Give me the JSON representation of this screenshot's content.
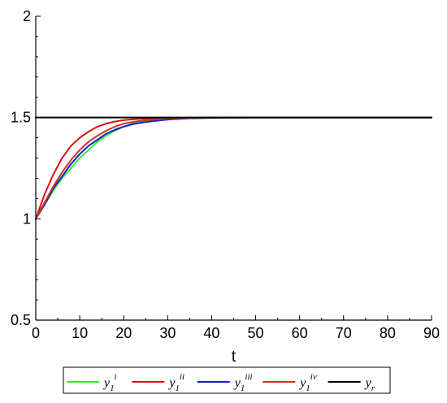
{
  "chart_data": {
    "type": "line",
    "title": "",
    "xlabel": "t",
    "ylabel": "",
    "xlim": [
      0,
      90
    ],
    "ylim": [
      0.5,
      2
    ],
    "grid": false,
    "legend_position": "bottom",
    "x_ticks": [
      "0",
      "10",
      "20",
      "30",
      "40",
      "50",
      "60",
      "70",
      "80",
      "90"
    ],
    "x_tick_values": [
      0,
      10,
      20,
      30,
      40,
      50,
      60,
      70,
      80,
      90
    ],
    "y_ticks": [
      "0.5",
      "1",
      "1.5",
      "2"
    ],
    "y_tick_values": [
      0.5,
      1,
      1.5,
      2
    ],
    "series": [
      {
        "name": "y1i",
        "legend_base": "y",
        "legend_sub": "1",
        "legend_sup": "i",
        "color": "#33ee33",
        "x": [
          0,
          2,
          4,
          6,
          8,
          10,
          12,
          14,
          16,
          18,
          20,
          22,
          25,
          30,
          35,
          40,
          50,
          60,
          70,
          80,
          90
        ],
        "y": [
          1.0,
          1.07,
          1.14,
          1.2,
          1.25,
          1.3,
          1.34,
          1.38,
          1.41,
          1.435,
          1.455,
          1.47,
          1.48,
          1.493,
          1.497,
          1.499,
          1.5,
          1.5,
          1.5,
          1.5,
          1.5
        ]
      },
      {
        "name": "y1ii",
        "legend_base": "y",
        "legend_sub": "1",
        "legend_sup": "ii",
        "color": "#dd1111",
        "x": [
          0,
          2,
          4,
          6,
          8,
          10,
          12,
          14,
          16,
          18,
          20,
          22,
          25,
          30,
          35,
          40,
          50,
          60,
          70,
          80,
          90
        ],
        "y": [
          1.0,
          1.12,
          1.22,
          1.3,
          1.36,
          1.4,
          1.43,
          1.455,
          1.47,
          1.48,
          1.487,
          1.491,
          1.495,
          1.498,
          1.499,
          1.5,
          1.5,
          1.5,
          1.5,
          1.5,
          1.5
        ]
      },
      {
        "name": "y1iii",
        "legend_base": "y",
        "legend_sub": "1",
        "legend_sup": "iii",
        "color": "#1122cc",
        "x": [
          0,
          2,
          4,
          6,
          8,
          10,
          12,
          14,
          16,
          18,
          20,
          22,
          25,
          30,
          35,
          40,
          50,
          60,
          70,
          80,
          90
        ],
        "y": [
          1.0,
          1.07,
          1.15,
          1.21,
          1.27,
          1.32,
          1.36,
          1.39,
          1.42,
          1.44,
          1.455,
          1.467,
          1.478,
          1.49,
          1.496,
          1.498,
          1.5,
          1.5,
          1.5,
          1.5,
          1.5
        ]
      },
      {
        "name": "y1iv",
        "legend_base": "y",
        "legend_sub": "1",
        "legend_sup": "iv",
        "color": "#cc3322",
        "x": [
          0,
          2,
          4,
          6,
          8,
          10,
          12,
          14,
          16,
          18,
          20,
          22,
          25,
          30,
          35,
          40,
          50,
          60,
          70,
          80,
          90
        ],
        "y": [
          1.0,
          1.08,
          1.16,
          1.23,
          1.29,
          1.34,
          1.38,
          1.41,
          1.435,
          1.455,
          1.47,
          1.478,
          1.487,
          1.495,
          1.498,
          1.5,
          1.5,
          1.5,
          1.5,
          1.5,
          1.5
        ]
      },
      {
        "name": "yr",
        "legend_base": "y",
        "legend_sub": "r",
        "legend_sup": "",
        "color": "#000000",
        "x": [
          0,
          90
        ],
        "y": [
          1.5,
          1.5
        ]
      }
    ]
  }
}
